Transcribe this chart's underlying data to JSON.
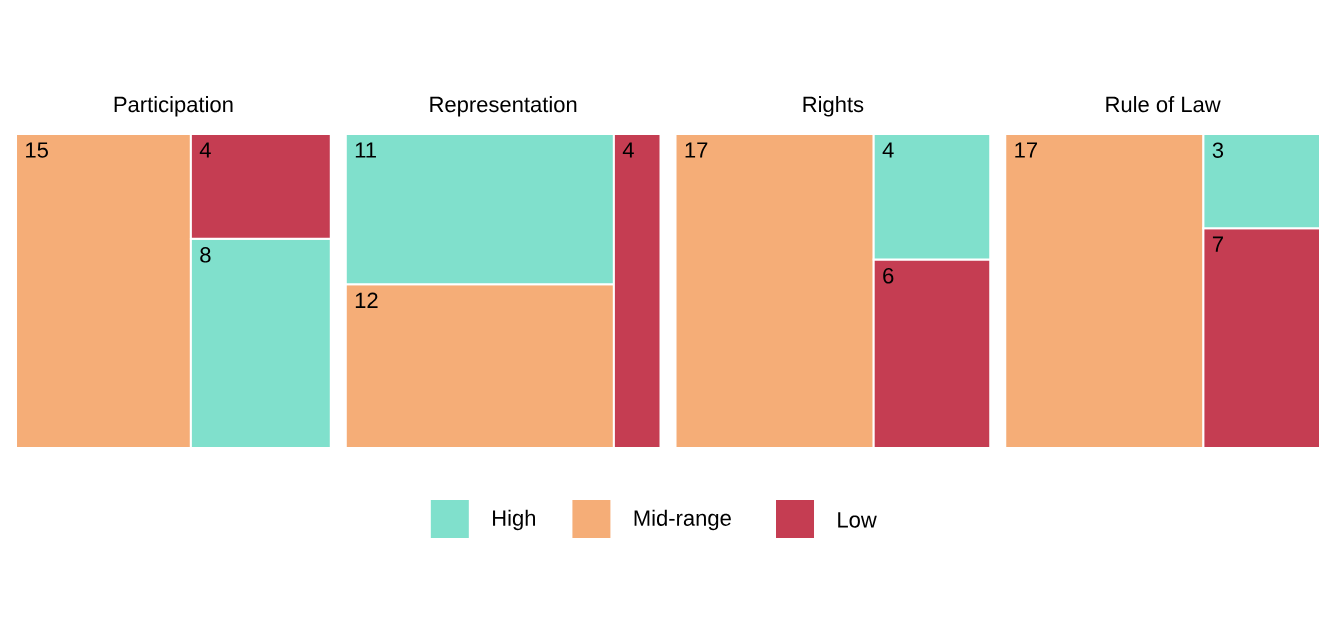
{
  "chart_data": {
    "type": "other",
    "categories": [
      "Participation",
      "Representation",
      "Rights",
      "Rule of Law"
    ],
    "series": [
      {
        "name": "High",
        "color": "#80e0cc",
        "values": [
          8,
          11,
          4,
          3
        ]
      },
      {
        "name": "Mid-range",
        "color": "#f5ad77",
        "values": [
          15,
          12,
          17,
          17
        ]
      },
      {
        "name": "Low",
        "color": "#c53d52",
        "values": [
          4,
          4,
          6,
          7
        ]
      }
    ],
    "data_labels": true,
    "legend": "bottom"
  }
}
